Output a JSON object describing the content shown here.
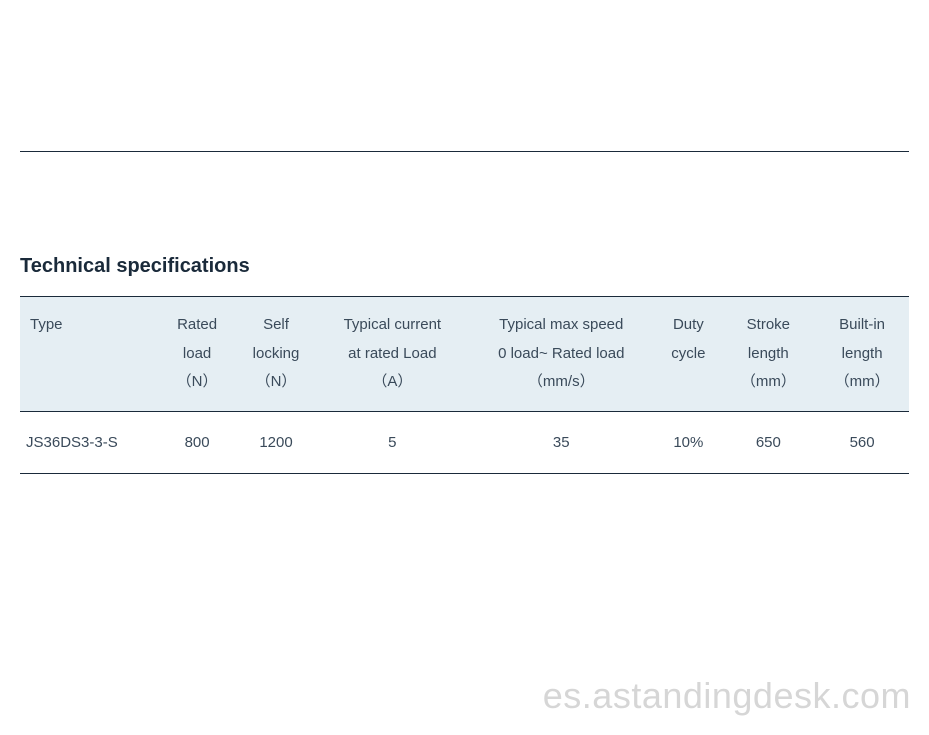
{
  "title": "Technical specifications",
  "header_bg": "#e5eef3",
  "rule_color": "#1a2a3a",
  "text_color": "#3a4a5a",
  "columns": [
    {
      "lines": [
        "Type"
      ],
      "align": "left"
    },
    {
      "lines": [
        "Rated",
        "load",
        "（N）"
      ],
      "align": "center"
    },
    {
      "lines": [
        "Self",
        "locking",
        "（N）"
      ],
      "align": "center"
    },
    {
      "lines": [
        "Typical current",
        "at rated Load",
        "（A）"
      ],
      "align": "center"
    },
    {
      "lines": [
        "Typical max speed",
        "0 load~ Rated load",
        "（mm/s）"
      ],
      "align": "center"
    },
    {
      "lines": [
        "Duty",
        "cycle"
      ],
      "align": "center"
    },
    {
      "lines": [
        "Stroke",
        "length",
        "（mm）"
      ],
      "align": "center"
    },
    {
      "lines": [
        "Built-in",
        "length",
        "（mm）"
      ],
      "align": "center"
    }
  ],
  "rows": [
    [
      "JS36DS3-3-S",
      "800",
      "1200",
      "5",
      "35",
      "10%",
      "650",
      "560"
    ]
  ],
  "watermark": "es.astandingdesk.com"
}
